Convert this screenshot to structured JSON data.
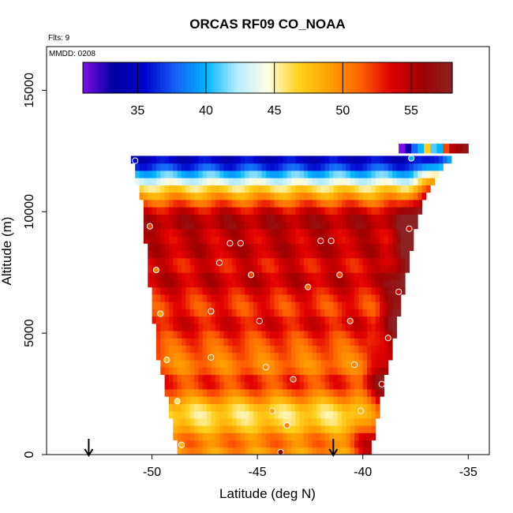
{
  "chart_data": {
    "type": "heatmap",
    "title": "ORCAS RF09 CO_NOAA",
    "xlabel": "Latitude (deg N)",
    "ylabel": "Altitude (m)",
    "notes": {
      "flights": "Flts: 9",
      "date": "MMDD: 0208"
    },
    "xlim": [
      -55,
      -34
    ],
    "ylim": [
      0,
      16800
    ],
    "x_ticks": [
      -50,
      -45,
      -40,
      -35
    ],
    "x_tick_labels": [
      "-50",
      "-45",
      "-40",
      "-35"
    ],
    "y_ticks": [
      0,
      5000,
      10000,
      15000
    ],
    "y_tick_labels": [
      "0",
      "5000",
      "10000",
      "15000"
    ],
    "colorbar": {
      "min": 31,
      "max": 58,
      "ticks": [
        35,
        40,
        45,
        50,
        55
      ],
      "tick_labels": [
        "35",
        "40",
        "45",
        "50",
        "55"
      ],
      "colors": [
        "#7b0fe6",
        "#0000a0",
        "#0000cd",
        "#1560f5",
        "#00b4ff",
        "#b4ecff",
        "#ffffe6",
        "#ffd21e",
        "#ffa000",
        "#ff6400",
        "#e10000",
        "#a00000",
        "#8b2323"
      ]
    },
    "curtain": {
      "lat_bins": [
        -51.0,
        -50.8,
        -50.6,
        -50.4,
        -50.2,
        -50.0,
        -49.8,
        -49.6,
        -49.4,
        -49.2,
        -49.0,
        -48.8,
        -48.6,
        -48.4,
        -48.2,
        -48.0,
        -47.8,
        -47.6,
        -47.4,
        -47.2,
        -47.0,
        -46.8,
        -46.6,
        -46.4,
        -46.2,
        -46.0,
        -45.8,
        -45.6,
        -45.4,
        -45.2,
        -45.0,
        -44.8,
        -44.6,
        -44.4,
        -44.2,
        -44.0,
        -43.8,
        -43.6,
        -43.4,
        -43.2,
        -43.0,
        -42.8,
        -42.6,
        -42.4,
        -42.2,
        -42.0,
        -41.8,
        -41.6,
        -41.4,
        -41.2,
        -41.0,
        -40.8,
        -40.6,
        -40.4,
        -40.2,
        -40.0,
        -39.8,
        -39.6,
        -39.4,
        -39.2,
        -39.0,
        -38.8,
        -38.6,
        -38.4,
        -38.2,
        -38.0,
        -37.8,
        -37.6,
        -37.4,
        -37.2,
        -37.0,
        -36.8,
        -36.6,
        -36.4,
        -36.2,
        -36.0,
        -35.8,
        -35.6
      ],
      "alt_bins": [
        0,
        300,
        600,
        900,
        1200,
        1500,
        1800,
        2100,
        2400,
        2700,
        3000,
        3300,
        3600,
        3900,
        4200,
        4500,
        4800,
        5100,
        5400,
        5700,
        6000,
        6300,
        6600,
        6900,
        7200,
        7500,
        7800,
        8100,
        8400,
        8700,
        9000,
        9300,
        9600,
        9900,
        10200,
        10500,
        10800,
        11100,
        11400,
        11700,
        12000
      ],
      "left_edge": [
        [
          0,
          -48.8
        ],
        [
          2000,
          -49.2
        ],
        [
          4000,
          -49.7
        ],
        [
          6000,
          -50.0
        ],
        [
          8000,
          -50.2
        ],
        [
          9500,
          -50.4
        ],
        [
          10500,
          -50.5
        ],
        [
          12200,
          -51.0
        ]
      ],
      "right_edge": [
        [
          0,
          -39.6
        ],
        [
          2000,
          -39.2
        ],
        [
          4000,
          -38.7
        ],
        [
          6000,
          -38.2
        ],
        [
          8000,
          -37.8
        ],
        [
          10000,
          -37.3
        ],
        [
          11500,
          -36.5
        ],
        [
          12400,
          -35.6
        ]
      ],
      "layers": [
        {
          "alt": 0,
          "value": 49
        },
        {
          "alt": 600,
          "value": 51
        },
        {
          "alt": 1200,
          "value": 47
        },
        {
          "alt": 1800,
          "value": 46
        },
        {
          "alt": 2400,
          "value": 50
        },
        {
          "alt": 3000,
          "value": 53
        },
        {
          "alt": 3600,
          "value": 50
        },
        {
          "alt": 4200,
          "value": 51
        },
        {
          "alt": 4800,
          "value": 52
        },
        {
          "alt": 5400,
          "value": 54
        },
        {
          "alt": 6000,
          "value": 52
        },
        {
          "alt": 6600,
          "value": 53
        },
        {
          "alt": 7200,
          "value": 55
        },
        {
          "alt": 7800,
          "value": 53
        },
        {
          "alt": 8400,
          "value": 55
        },
        {
          "alt": 9000,
          "value": 54
        },
        {
          "alt": 9600,
          "value": 56
        },
        {
          "alt": 10200,
          "value": 53
        },
        {
          "alt": 10500,
          "value": 50
        },
        {
          "alt": 10800,
          "value": 48
        },
        {
          "alt": 11100,
          "value": 45
        },
        {
          "alt": 11400,
          "value": 42
        },
        {
          "alt": 11700,
          "value": 39
        },
        {
          "alt": 12000,
          "value": 35
        }
      ],
      "right_edge_boost": 5,
      "top_strip": {
        "alt": 12600,
        "lat_start": -38.3,
        "lat_end": -35.0,
        "values": [
          31,
          33,
          38,
          40,
          47,
          41,
          40,
          52,
          55,
          56,
          57
        ]
      }
    },
    "observations": [
      {
        "lat": -50.8,
        "alt": 12100,
        "value": 35
      },
      {
        "lat": -50.1,
        "alt": 9400,
        "value": 52
      },
      {
        "lat": -49.8,
        "alt": 7600,
        "value": 50
      },
      {
        "lat": -49.6,
        "alt": 5800,
        "value": 49
      },
      {
        "lat": -49.3,
        "alt": 3900,
        "value": 48
      },
      {
        "lat": -48.8,
        "alt": 2200,
        "value": 46
      },
      {
        "lat": -48.6,
        "alt": 400,
        "value": 48
      },
      {
        "lat": -47.2,
        "alt": 5900,
        "value": 52
      },
      {
        "lat": -47.2,
        "alt": 4000,
        "value": 50
      },
      {
        "lat": -46.8,
        "alt": 7900,
        "value": 53
      },
      {
        "lat": -46.3,
        "alt": 8700,
        "value": 54
      },
      {
        "lat": -45.8,
        "alt": 8700,
        "value": 54
      },
      {
        "lat": -45.3,
        "alt": 7400,
        "value": 52
      },
      {
        "lat": -44.9,
        "alt": 5500,
        "value": 54
      },
      {
        "lat": -44.6,
        "alt": 3600,
        "value": 50
      },
      {
        "lat": -44.3,
        "alt": 1800,
        "value": 49
      },
      {
        "lat": -43.9,
        "alt": 100,
        "value": 56
      },
      {
        "lat": -43.6,
        "alt": 1200,
        "value": 50
      },
      {
        "lat": -43.3,
        "alt": 3100,
        "value": 52
      },
      {
        "lat": -42.6,
        "alt": 6900,
        "value": 51
      },
      {
        "lat": -42.0,
        "alt": 8800,
        "value": 54
      },
      {
        "lat": -41.5,
        "alt": 8800,
        "value": 54
      },
      {
        "lat": -41.1,
        "alt": 7400,
        "value": 52
      },
      {
        "lat": -40.6,
        "alt": 5500,
        "value": 52
      },
      {
        "lat": -40.4,
        "alt": 3700,
        "value": 50
      },
      {
        "lat": -40.1,
        "alt": 1800,
        "value": 48
      },
      {
        "lat": -39.1,
        "alt": 2900,
        "value": 55
      },
      {
        "lat": -38.8,
        "alt": 4800,
        "value": 53
      },
      {
        "lat": -38.3,
        "alt": 6700,
        "value": 54
      },
      {
        "lat": -37.8,
        "alt": 9300,
        "value": 54
      },
      {
        "lat": -37.7,
        "alt": 12200,
        "value": 40
      }
    ],
    "arrows": [
      {
        "lat": -53.0
      },
      {
        "lat": -41.4
      }
    ]
  }
}
